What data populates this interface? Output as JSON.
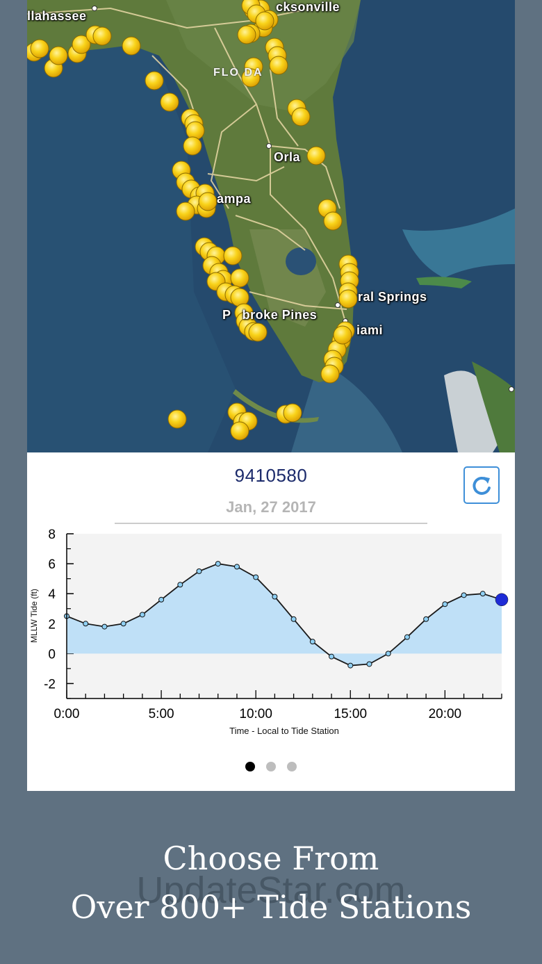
{
  "map": {
    "cities": [
      {
        "name": "llahassee",
        "id": "tallahassee"
      },
      {
        "name": "cksonville",
        "id": "jacksonville"
      },
      {
        "name": "Orla",
        "id": "orlando"
      },
      {
        "name": "ampa",
        "id": "tampa"
      },
      {
        "name": "ral Springs",
        "id": "coral-springs"
      },
      {
        "name": "P   broke Pines",
        "id": "pembroke-pines"
      },
      {
        "name": "iami",
        "id": "miami"
      }
    ],
    "state_label": "FLO  DA",
    "marker_color": "#f5c400",
    "water_color": "#254a6d",
    "land_color": "#5f7a3c"
  },
  "station": {
    "id": "9410580",
    "date": "Jan, 27 2017",
    "refresh_icon": "refresh-icon"
  },
  "chart_data": {
    "type": "area",
    "xlabel": "Time - Local to Tide Station",
    "ylabel": "MLLW Tide (ft)",
    "x_tick_labels": [
      "0:00",
      "5:00",
      "10:00",
      "15:00",
      "20:00"
    ],
    "y_tick_labels": [
      "8",
      "6",
      "4",
      "2",
      "0",
      "-2"
    ],
    "xlim": [
      0,
      23
    ],
    "ylim": [
      -3,
      8
    ],
    "x": [
      0,
      1,
      2,
      3,
      4,
      5,
      6,
      7,
      8,
      9,
      10,
      11,
      12,
      13,
      14,
      15,
      16,
      17,
      18,
      19,
      20,
      21,
      22,
      23
    ],
    "values": [
      2.5,
      2.0,
      1.8,
      2.0,
      2.6,
      3.6,
      4.6,
      5.5,
      6.0,
      5.8,
      5.1,
      3.8,
      2.3,
      0.8,
      -0.2,
      -0.8,
      -0.7,
      0.0,
      1.1,
      2.3,
      3.3,
      3.9,
      4.0,
      3.6
    ],
    "fill_color": "#bfe0f7",
    "line_color": "#1a1a1a",
    "current_point_color": "#1d2bd6",
    "grid": false
  },
  "pager": {
    "count": 3,
    "active": 0
  },
  "caption": {
    "line1": "Choose From",
    "line2": "Over 800+ Tide Stations"
  },
  "watermark": "UpdateStar.com"
}
